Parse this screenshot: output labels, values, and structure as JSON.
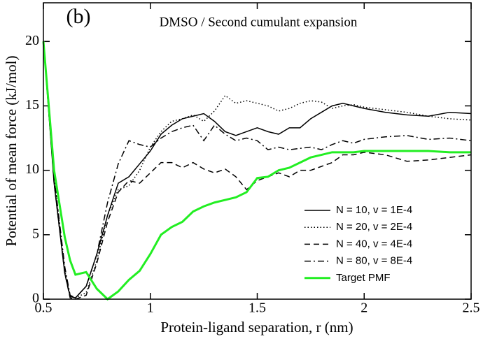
{
  "chart_data": {
    "type": "line",
    "title": "DMSO / Second cumulant expansion",
    "annotation": "(b)",
    "xlabel": "Protein-ligand separation, r (nm)",
    "ylabel": "Potential of mean force (kJ/mol)",
    "xlim": [
      0.5,
      2.5
    ],
    "ylim": [
      0,
      23
    ],
    "xticks": [
      0.5,
      1,
      1.5,
      2,
      2.5
    ],
    "yticks": [
      0,
      5,
      10,
      15,
      20
    ],
    "legend": "lower right",
    "x": [
      0.5,
      0.55,
      0.6,
      0.625,
      0.65,
      0.7,
      0.75,
      0.8,
      0.85,
      0.9,
      0.95,
      1.0,
      1.05,
      1.1,
      1.15,
      1.2,
      1.25,
      1.3,
      1.35,
      1.4,
      1.45,
      1.5,
      1.55,
      1.6,
      1.65,
      1.7,
      1.75,
      1.8,
      1.85,
      1.9,
      1.95,
      2.0,
      2.1,
      2.2,
      2.3,
      2.4,
      2.5
    ],
    "series": [
      {
        "name": "N = 10, v = 1E-4",
        "color": "#000000",
        "dash": "solid",
        "values": [
          20,
          9,
          2,
          0.2,
          0.1,
          1,
          3.5,
          6.5,
          9,
          9.5,
          10.5,
          11.5,
          12.8,
          13.5,
          14,
          14.2,
          14.4,
          13.8,
          13,
          12.7,
          13,
          13.3,
          13,
          12.8,
          13.3,
          13.3,
          14,
          14.5,
          15,
          15.2,
          15,
          14.8,
          14.5,
          14.3,
          14.2,
          14.5,
          14.4
        ]
      },
      {
        "name": "N = 20, v = 2E-4",
        "color": "#000000",
        "dash": "dotted",
        "values": [
          20,
          9.5,
          2.2,
          0.3,
          0.1,
          0.5,
          3,
          6.5,
          8.5,
          8.8,
          10,
          11.8,
          13,
          13.8,
          14,
          14.3,
          13.8,
          14.6,
          15.8,
          15.2,
          15.4,
          15.2,
          15,
          14.6,
          14.8,
          15.2,
          15.4,
          15.3,
          14.8,
          15,
          15.1,
          14.9,
          14.7,
          14.5,
          14.2,
          14,
          13.9
        ]
      },
      {
        "name": "N = 40, v = 4E-4",
        "color": "#000000",
        "dash": "dashed",
        "values": [
          20,
          9,
          2,
          0.1,
          0,
          0.3,
          2.8,
          6,
          8.3,
          9.2,
          9,
          9.8,
          10.6,
          10.6,
          10.2,
          10.6,
          10.1,
          9.8,
          10.1,
          9.5,
          8.5,
          9.2,
          9.5,
          9.8,
          9.5,
          10,
          10,
          10.3,
          10.6,
          11.2,
          11.2,
          11.4,
          11.2,
          10.7,
          10.8,
          11,
          11.2
        ]
      },
      {
        "name": "N = 80, v = 8E-4",
        "color": "#000000",
        "dash": "dashdot",
        "values": [
          20,
          9.5,
          2.5,
          0.3,
          0.1,
          1,
          3.5,
          7.5,
          10.5,
          12.3,
          12,
          11.8,
          12.5,
          13,
          13.3,
          13.5,
          12.3,
          13.5,
          12.8,
          12.3,
          12.5,
          12.3,
          11.6,
          11.8,
          11.6,
          11.7,
          11.8,
          11.6,
          12,
          12.3,
          12.1,
          12.4,
          12.6,
          12.7,
          12.4,
          12.5,
          12.3
        ]
      },
      {
        "name": "Target PMF",
        "color": "#22ee22",
        "dash": "solid",
        "width": 3,
        "values": [
          20,
          10,
          4.8,
          3,
          1.9,
          2.1,
          0.8,
          0,
          0.6,
          1.5,
          2.2,
          3.5,
          5,
          5.6,
          6,
          6.8,
          7.2,
          7.5,
          7.7,
          7.9,
          8.3,
          9.4,
          9.5,
          10,
          10.2,
          10.6,
          11,
          11.2,
          11.4,
          11.4,
          11.4,
          11.5,
          11.5,
          11.5,
          11.5,
          11.4,
          11.4
        ]
      }
    ]
  }
}
